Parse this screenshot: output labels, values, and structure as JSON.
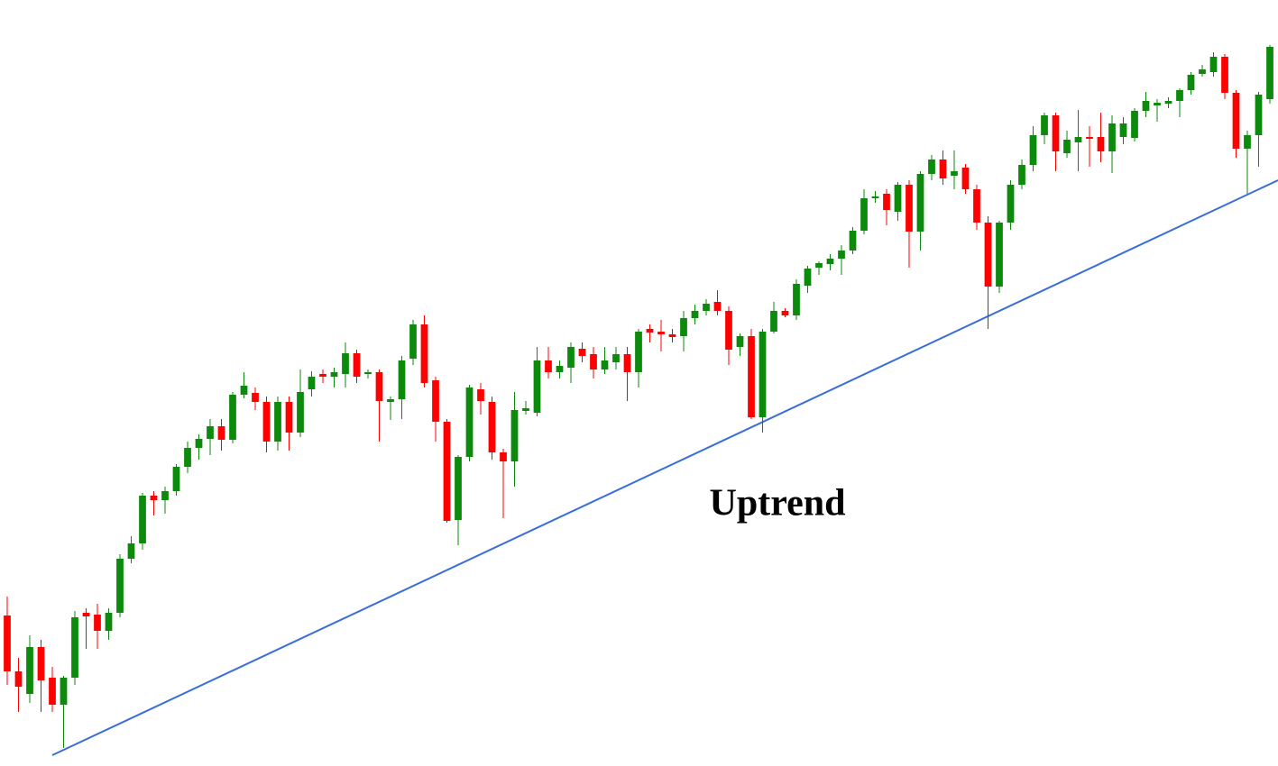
{
  "chart_data": {
    "type": "candlestick",
    "annotation": "Uptrend",
    "up_color": "#0b8a0b",
    "down_color": "#ff0000",
    "xlim": [
      -0.64,
      112.72
    ],
    "ylim": [
      0,
      850
    ],
    "open": [
      167,
      105,
      80,
      132,
      98,
      68,
      98,
      170,
      168,
      150,
      170,
      230,
      247,
      300,
      295,
      305,
      332,
      353,
      363,
      377,
      362,
      412,
      414,
      404,
      360,
      404,
      370,
      418,
      435,
      432,
      435,
      458,
      435,
      437,
      404,
      407,
      452,
      490,
      428,
      382,
      273,
      343,
      418,
      404,
      348,
      338,
      394,
      392,
      450,
      437,
      442,
      463,
      457,
      440,
      448,
      457,
      437,
      485,
      482,
      479,
      477,
      497,
      505,
      515,
      505,
      465,
      477,
      387,
      482,
      505,
      500,
      533,
      553,
      557,
      563,
      572,
      594,
      630,
      635,
      615,
      645,
      593,
      657,
      673,
      655,
      664,
      640,
      603,
      532,
      603,
      645,
      667,
      700,
      722,
      680,
      692,
      698,
      698,
      682,
      698,
      697,
      727,
      733,
      735,
      738,
      750,
      768,
      770,
      787,
      747,
      685,
      700,
      740
    ],
    "high": [
      188,
      120,
      145,
      140,
      110,
      100,
      172,
      175,
      180,
      175,
      235,
      255,
      303,
      305,
      310,
      335,
      360,
      368,
      385,
      385,
      415,
      437,
      420,
      410,
      410,
      410,
      440,
      438,
      440,
      442,
      470,
      462,
      440,
      440,
      410,
      455,
      495,
      500,
      432,
      385,
      345,
      423,
      425,
      410,
      352,
      415,
      405,
      465,
      465,
      450,
      470,
      470,
      465,
      465,
      465,
      465,
      485,
      490,
      495,
      485,
      505,
      512,
      518,
      528,
      510,
      480,
      485,
      485,
      515,
      508,
      540,
      555,
      560,
      568,
      578,
      598,
      640,
      638,
      640,
      648,
      650,
      660,
      678,
      683,
      683,
      668,
      645,
      610,
      605,
      650,
      673,
      710,
      725,
      725,
      705,
      728,
      710,
      725,
      722,
      720,
      730,
      748,
      740,
      742,
      752,
      770,
      778,
      792,
      790,
      750,
      705,
      748,
      800
    ],
    "low": [
      90,
      60,
      70,
      60,
      60,
      20,
      90,
      130,
      130,
      140,
      165,
      225,
      240,
      278,
      280,
      300,
      325,
      340,
      345,
      350,
      358,
      408,
      395,
      348,
      350,
      350,
      365,
      410,
      425,
      420,
      420,
      425,
      430,
      360,
      384,
      385,
      445,
      420,
      360,
      270,
      245,
      338,
      390,
      340,
      275,
      310,
      390,
      388,
      430,
      430,
      425,
      448,
      430,
      435,
      440,
      405,
      420,
      470,
      460,
      470,
      460,
      490,
      500,
      500,
      445,
      455,
      385,
      370,
      480,
      498,
      495,
      525,
      545,
      550,
      545,
      568,
      590,
      625,
      600,
      605,
      553,
      572,
      650,
      645,
      640,
      635,
      595,
      485,
      525,
      595,
      640,
      660,
      690,
      660,
      675,
      660,
      665,
      670,
      658,
      690,
      693,
      720,
      715,
      730,
      720,
      745,
      765,
      765,
      740,
      675,
      635,
      665,
      735
    ],
    "close": [
      105,
      88,
      132,
      95,
      68,
      98,
      165,
      166,
      150,
      170,
      230,
      247,
      300,
      295,
      305,
      332,
      353,
      363,
      377,
      362,
      412,
      422,
      404,
      360,
      404,
      370,
      415,
      432,
      432,
      437,
      458,
      432,
      437,
      405,
      407,
      450,
      490,
      425,
      382,
      272,
      343,
      420,
      405,
      348,
      338,
      395,
      397,
      450,
      437,
      444,
      465,
      455,
      440,
      450,
      457,
      437,
      482,
      481,
      479,
      476,
      497,
      505,
      513,
      505,
      462,
      477,
      387,
      482,
      505,
      500,
      535,
      552,
      558,
      563,
      572,
      594,
      630,
      632,
      617,
      645,
      593,
      657,
      673,
      652,
      660,
      640,
      603,
      532,
      603,
      645,
      667,
      700,
      722,
      682,
      695,
      698,
      696,
      682,
      713,
      713,
      727,
      738,
      736,
      738,
      750,
      767,
      773,
      787,
      747,
      685,
      700,
      745,
      798
    ],
    "trendline": {
      "x": [
        4,
        112.72
      ],
      "y": [
        12,
        650
      ],
      "color": "#3a6fd8"
    }
  }
}
